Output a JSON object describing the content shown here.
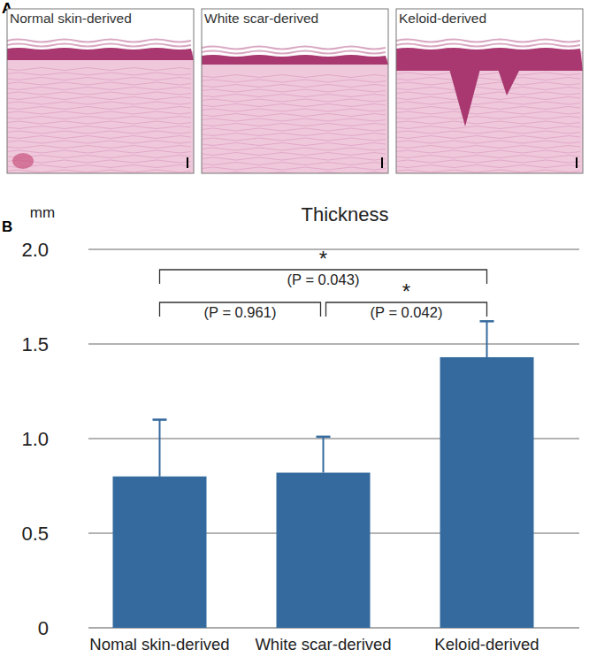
{
  "figure": {
    "panel_a": {
      "label": "A",
      "images": [
        {
          "title": "Normal skin-derived"
        },
        {
          "title": "White scar-derived"
        },
        {
          "title": "Keloid-derived"
        }
      ]
    },
    "panel_b_label": "B"
  },
  "chart_data": {
    "type": "bar",
    "title": "Thickness",
    "y_label": "mm",
    "categories": [
      "Nomal skin-derived",
      "White scar-derived",
      "Keloid-derived"
    ],
    "values": [
      0.8,
      0.82,
      1.43
    ],
    "errors": [
      0.3,
      0.19,
      0.19
    ],
    "color": "#356a9e",
    "ylim": [
      0,
      2
    ],
    "yticks": [
      0,
      0.5,
      {
        "value": 1,
        "label": "1.0"
      },
      1.5,
      {
        "value": 2,
        "label": "2.0"
      }
    ],
    "grid": true,
    "annotations": [
      {
        "from": 0,
        "to": 2,
        "star": "*",
        "text": "(P = 0.043)"
      },
      {
        "from": 0,
        "to": 1,
        "text": "(P = 0.961)"
      },
      {
        "from": 1,
        "to": 2,
        "star": "*",
        "text": "(P = 0.042)"
      }
    ]
  }
}
